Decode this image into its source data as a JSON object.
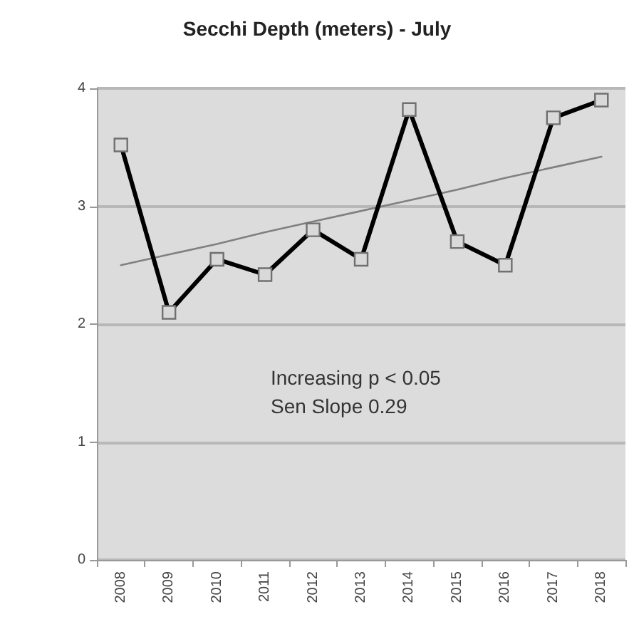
{
  "chart_data": {
    "type": "line",
    "title": "Secchi Depth (meters) - July",
    "categories": [
      "2008",
      "2009",
      "2010",
      "2011",
      "2012",
      "2013",
      "2014",
      "2015",
      "2016",
      "2017",
      "2018"
    ],
    "series": [
      {
        "color": "#000000",
        "values": [
          3.52,
          2.1,
          2.55,
          2.42,
          2.8,
          2.55,
          3.82,
          2.7,
          2.5,
          3.75,
          3.9
        ],
        "marker": "square"
      },
      {
        "type": "line",
        "color": "#808080",
        "values": [
          2.5,
          2.59,
          2.68,
          2.78,
          2.87,
          2.96,
          3.05,
          3.14,
          3.24,
          3.33,
          3.42
        ],
        "marker": "none"
      }
    ],
    "ylim": [
      0,
      4
    ],
    "yticks": [
      0,
      1,
      2,
      3,
      4
    ],
    "grid": "y",
    "annotations": [
      "Increasing p < 0.05",
      "Sen Slope 0.29"
    ]
  }
}
